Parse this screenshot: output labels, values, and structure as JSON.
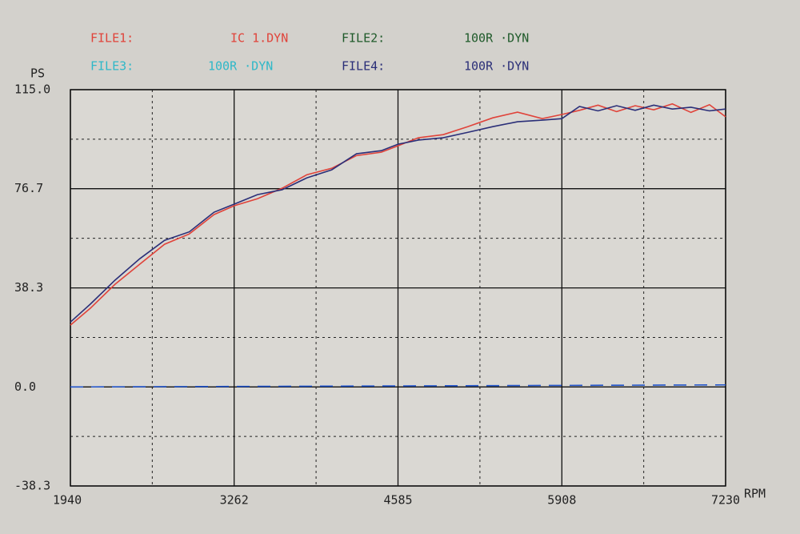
{
  "chart_data": {
    "type": "line",
    "y_label": "PS",
    "x_label": "RPM",
    "x": [
      1940,
      2100,
      2300,
      2500,
      2700,
      2900,
      3100,
      3262,
      3450,
      3650,
      3850,
      4050,
      4250,
      4450,
      4585,
      4750,
      4950,
      5150,
      5350,
      5550,
      5750,
      5908,
      6050,
      6200,
      6350,
      6500,
      6650,
      6800,
      6950,
      7100,
      7230
    ],
    "series": [
      {
        "name": "FILE1:",
        "file": "IC  1.DYN",
        "color": "#e0433a",
        "values": [
          23.9,
          30.4,
          39.7,
          47.5,
          55.2,
          59.2,
          66.7,
          70.1,
          72.8,
          76.9,
          82.1,
          84.6,
          89.5,
          90.8,
          93.3,
          96.4,
          97.6,
          100.7,
          104.1,
          106.3,
          103.8,
          105.4,
          107,
          109,
          106.5,
          108.8,
          107.2,
          109.5,
          106.2,
          109.2,
          104.5
        ]
      },
      {
        "name": "FILE2:",
        "file": "100R ·DYN",
        "color": "#1f5a2a",
        "values": [
          null,
          null,
          null,
          null,
          null,
          null,
          null,
          null,
          null,
          null,
          null,
          null,
          null,
          null,
          null,
          null,
          null,
          null,
          null,
          null,
          null,
          null,
          null,
          null,
          null,
          null,
          null,
          null,
          null,
          null,
          null
        ]
      },
      {
        "name": "FILE3:",
        "file": "100R ·DYN",
        "color": "#2fb8c8",
        "values": [
          null,
          null,
          null,
          null,
          null,
          null,
          null,
          null,
          null,
          null,
          null,
          null,
          null,
          null,
          null,
          null,
          null,
          null,
          null,
          null,
          null,
          null,
          null,
          null,
          null,
          null,
          null,
          null,
          null,
          null,
          null
        ]
      },
      {
        "name": "FILE4:",
        "file": "100R ·DYN",
        "color": "#2b2f78",
        "values": [
          25.1,
          32,
          41.3,
          49.6,
          56.7,
          60,
          67.6,
          70.7,
          74.4,
          76.3,
          80.9,
          84,
          90.2,
          91.4,
          93.9,
          95.5,
          96.4,
          98.5,
          100.7,
          102.6,
          103.2,
          103.8,
          108.5,
          106.8,
          108.8,
          107,
          109,
          107.5,
          108.2,
          106.8,
          107.5
        ]
      }
    ],
    "zero_line": {
      "x": [
        1940,
        7230
      ],
      "values": [
        0,
        0.8
      ],
      "color": "#2255cc",
      "dashed": true
    },
    "xlim": [
      1940,
      7230
    ],
    "xticks": [
      1940,
      3262,
      4585,
      5908,
      7230
    ],
    "minor_xticks": [
      2601,
      3923.5,
      5246.5,
      6569
    ],
    "ylim": [
      -38.3,
      115
    ],
    "yticks": [
      -38.3,
      {
        "value": 0,
        "label": "0.0"
      },
      38.3,
      76.7,
      {
        "value": 115,
        "label": "115.0"
      }
    ],
    "minor_yticks": [
      -19.15,
      19.15,
      57.5,
      95.85
    ],
    "grid": true
  }
}
